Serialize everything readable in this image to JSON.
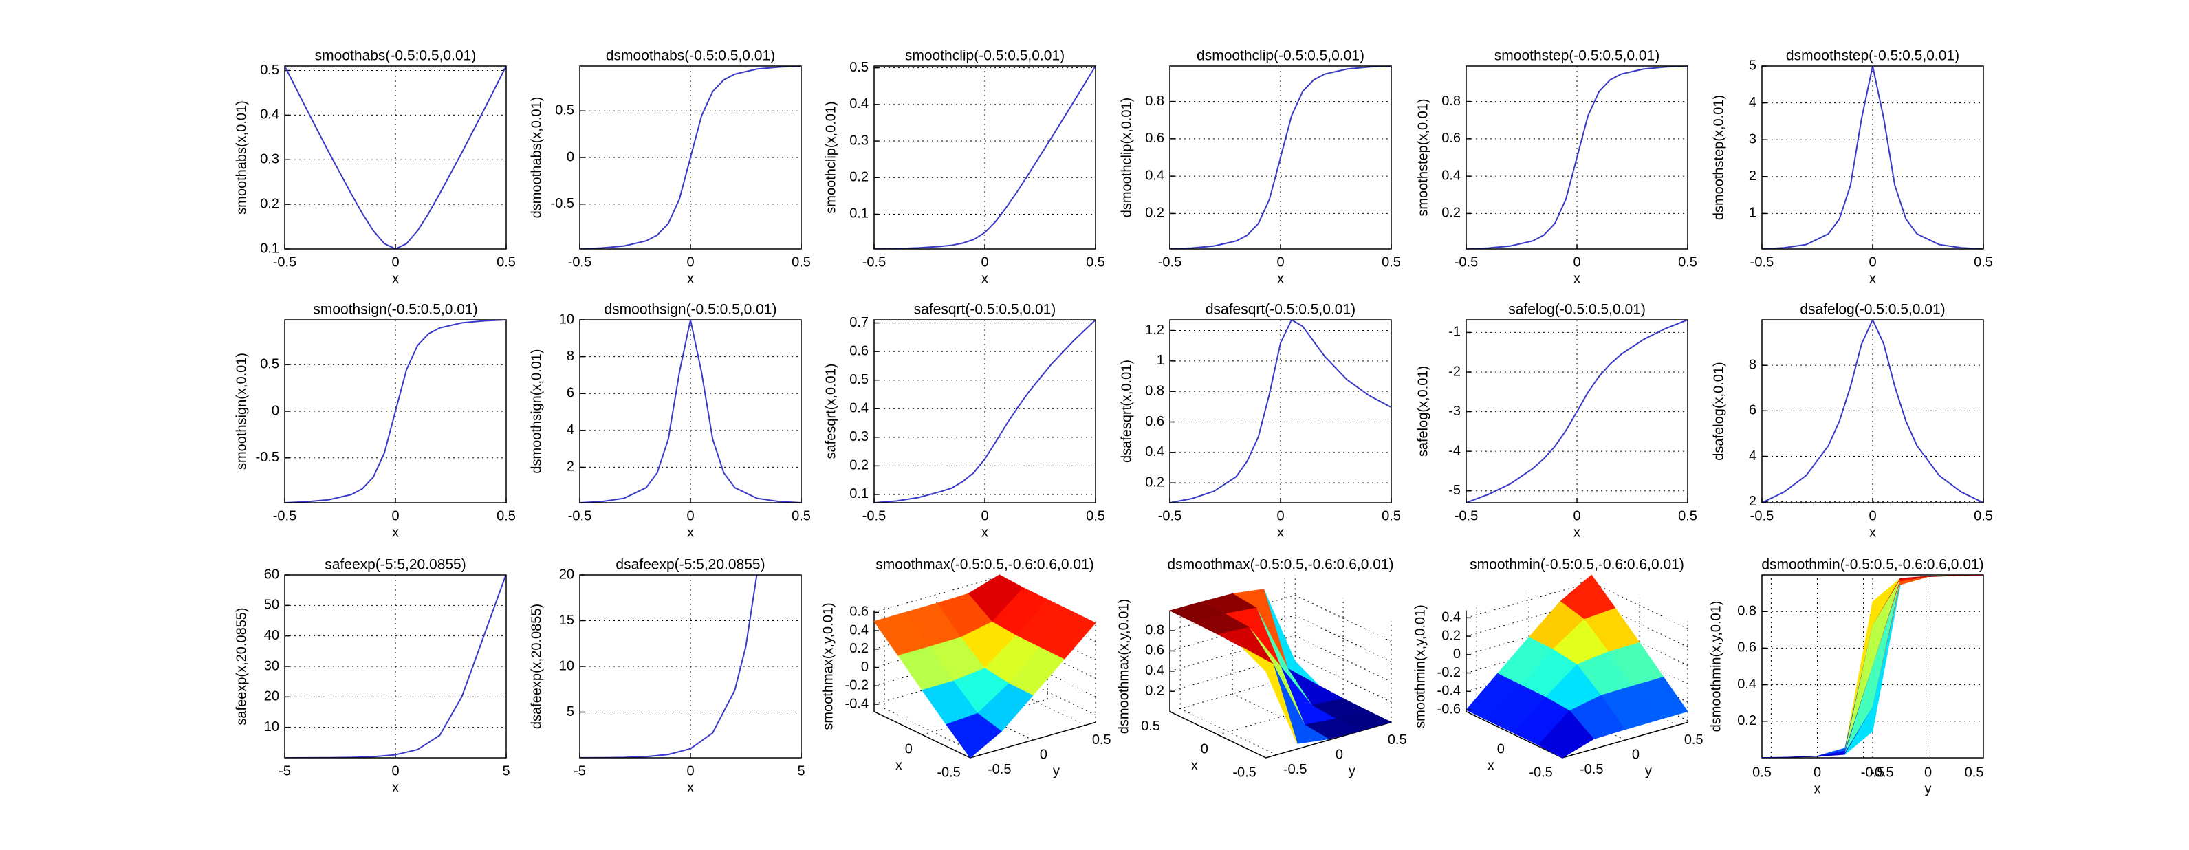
{
  "chart_data": [
    {
      "type": "line",
      "title": "smoothabs(-0.5:0.5,0.01)",
      "xlabel": "x",
      "ylabel": "smoothabs(x,0.01)",
      "color": "#3a3ac8",
      "grid": true,
      "x": [
        -0.5,
        -0.4,
        -0.3,
        -0.2,
        -0.15,
        -0.1,
        -0.05,
        0,
        0.05,
        0.1,
        0.15,
        0.2,
        0.3,
        0.4,
        0.5
      ],
      "values": [
        0.51,
        0.412,
        0.316,
        0.224,
        0.18,
        0.141,
        0.112,
        0.1,
        0.112,
        0.141,
        0.18,
        0.224,
        0.316,
        0.412,
        0.51
      ],
      "xlim": [
        -0.5,
        0.5
      ],
      "ylim": [
        0.1,
        0.51
      ],
      "xticks": [
        -0.5,
        0,
        0.5
      ],
      "yticks": [
        0.1,
        0.2,
        0.3,
        0.4,
        0.5
      ]
    },
    {
      "type": "line",
      "title": "dsmoothabs(-0.5:0.5,0.01)",
      "xlabel": "x",
      "ylabel": "dsmoothabs(x,0.01)",
      "color": "#3a3ac8",
      "grid": true,
      "x": [
        -0.5,
        -0.4,
        -0.3,
        -0.2,
        -0.15,
        -0.1,
        -0.05,
        0,
        0.05,
        0.1,
        0.15,
        0.2,
        0.3,
        0.4,
        0.5
      ],
      "values": [
        -0.981,
        -0.97,
        -0.949,
        -0.894,
        -0.832,
        -0.707,
        -0.447,
        0,
        0.447,
        0.707,
        0.832,
        0.894,
        0.949,
        0.97,
        0.981
      ],
      "xlim": [
        -0.5,
        0.5
      ],
      "ylim": [
        -0.981,
        0.981
      ],
      "xticks": [
        -0.5,
        0,
        0.5
      ],
      "yticks": [
        -0.5,
        0,
        0.5
      ]
    },
    {
      "type": "line",
      "title": "smoothclip(-0.5:0.5,0.01)",
      "xlabel": "x",
      "ylabel": "smoothclip(x,0.01)",
      "color": "#3a3ac8",
      "grid": true,
      "x": [
        -0.5,
        -0.4,
        -0.3,
        -0.2,
        -0.15,
        -0.1,
        -0.05,
        0,
        0.05,
        0.1,
        0.15,
        0.2,
        0.3,
        0.4,
        0.5
      ],
      "values": [
        0.005,
        0.006,
        0.008,
        0.012,
        0.015,
        0.021,
        0.031,
        0.05,
        0.081,
        0.121,
        0.165,
        0.212,
        0.308,
        0.406,
        0.505
      ],
      "xlim": [
        -0.5,
        0.5
      ],
      "ylim": [
        0.005,
        0.505
      ],
      "xticks": [
        -0.5,
        0,
        0.5
      ],
      "yticks": [
        0.1,
        0.2,
        0.3,
        0.4,
        0.5
      ]
    },
    {
      "type": "line",
      "title": "dsmoothclip(-0.5:0.5,0.01)",
      "xlabel": "x",
      "ylabel": "dsmoothclip(x,0.01)",
      "color": "#3a3ac8",
      "grid": true,
      "x": [
        -0.5,
        -0.4,
        -0.3,
        -0.2,
        -0.15,
        -0.1,
        -0.05,
        0,
        0.05,
        0.1,
        0.15,
        0.2,
        0.3,
        0.4,
        0.5
      ],
      "values": [
        0.01,
        0.015,
        0.026,
        0.053,
        0.084,
        0.146,
        0.276,
        0.5,
        0.724,
        0.854,
        0.916,
        0.947,
        0.974,
        0.985,
        0.99
      ],
      "xlim": [
        -0.5,
        0.5
      ],
      "ylim": [
        0.01,
        0.99
      ],
      "xticks": [
        -0.5,
        0,
        0.5
      ],
      "yticks": [
        0.2,
        0.4,
        0.6,
        0.8
      ]
    },
    {
      "type": "line",
      "title": "smoothstep(-0.5:0.5,0.01)",
      "xlabel": "x",
      "ylabel": "smoothstep(x,0.01)",
      "color": "#3a3ac8",
      "grid": true,
      "x": [
        -0.5,
        -0.4,
        -0.3,
        -0.2,
        -0.15,
        -0.1,
        -0.05,
        0,
        0.05,
        0.1,
        0.15,
        0.2,
        0.3,
        0.4,
        0.5
      ],
      "values": [
        0.01,
        0.015,
        0.026,
        0.053,
        0.084,
        0.146,
        0.276,
        0.5,
        0.724,
        0.854,
        0.916,
        0.947,
        0.974,
        0.985,
        0.99
      ],
      "xlim": [
        -0.5,
        0.5
      ],
      "ylim": [
        0.01,
        0.99
      ],
      "xticks": [
        -0.5,
        0,
        0.5
      ],
      "yticks": [
        0.2,
        0.4,
        0.6,
        0.8
      ]
    },
    {
      "type": "line",
      "title": "dsmoothstep(-0.5:0.5,0.01)",
      "xlabel": "x",
      "ylabel": "dsmoothstep(x,0.01)",
      "color": "#3a3ac8",
      "grid": true,
      "x": [
        -0.5,
        -0.4,
        -0.3,
        -0.2,
        -0.15,
        -0.1,
        -0.05,
        0,
        0.05,
        0.1,
        0.15,
        0.2,
        0.3,
        0.4,
        0.5
      ],
      "values": [
        0.038,
        0.071,
        0.158,
        0.447,
        0.853,
        1.768,
        3.578,
        5,
        3.578,
        1.768,
        0.853,
        0.447,
        0.158,
        0.071,
        0.038
      ],
      "xlim": [
        -0.5,
        0.5
      ],
      "ylim": [
        0.038,
        5
      ],
      "xticks": [
        -0.5,
        0,
        0.5
      ],
      "yticks": [
        1,
        2,
        3,
        4,
        5
      ]
    },
    {
      "type": "line",
      "title": "smoothsign(-0.5:0.5,0.01)",
      "xlabel": "x",
      "ylabel": "smoothsign(x,0.01)",
      "color": "#3a3ac8",
      "grid": true,
      "x": [
        -0.5,
        -0.4,
        -0.3,
        -0.2,
        -0.15,
        -0.1,
        -0.05,
        0,
        0.05,
        0.1,
        0.15,
        0.2,
        0.3,
        0.4,
        0.5
      ],
      "values": [
        -0.981,
        -0.97,
        -0.949,
        -0.894,
        -0.832,
        -0.707,
        -0.447,
        0,
        0.447,
        0.707,
        0.832,
        0.894,
        0.949,
        0.97,
        0.981
      ],
      "xlim": [
        -0.5,
        0.5
      ],
      "ylim": [
        -0.981,
        0.981
      ],
      "xticks": [
        -0.5,
        0,
        0.5
      ],
      "yticks": [
        -0.5,
        0,
        0.5
      ]
    },
    {
      "type": "line",
      "title": "dsmoothsign(-0.5:0.5,0.01)",
      "xlabel": "x",
      "ylabel": "dsmoothsign(x,0.01)",
      "color": "#3a3ac8",
      "grid": true,
      "x": [
        -0.5,
        -0.4,
        -0.3,
        -0.2,
        -0.15,
        -0.1,
        -0.05,
        0,
        0.05,
        0.1,
        0.15,
        0.2,
        0.3,
        0.4,
        0.5
      ],
      "values": [
        0.076,
        0.142,
        0.316,
        0.894,
        1.706,
        3.536,
        7.155,
        10,
        7.155,
        3.536,
        1.706,
        0.894,
        0.316,
        0.142,
        0.076
      ],
      "xlim": [
        -0.5,
        0.5
      ],
      "ylim": [
        0.076,
        10
      ],
      "xticks": [
        -0.5,
        0,
        0.5
      ],
      "yticks": [
        2,
        4,
        6,
        8,
        10
      ]
    },
    {
      "type": "line",
      "title": "safesqrt(-0.5:0.5,0.01)",
      "xlabel": "x",
      "ylabel": "safesqrt(x,0.01)",
      "color": "#3a3ac8",
      "grid": true,
      "x": [
        -0.5,
        -0.4,
        -0.3,
        -0.2,
        -0.15,
        -0.1,
        -0.05,
        0,
        0.05,
        0.1,
        0.15,
        0.2,
        0.3,
        0.4,
        0.5
      ],
      "values": [
        0.071,
        0.077,
        0.089,
        0.11,
        0.122,
        0.145,
        0.176,
        0.224,
        0.285,
        0.348,
        0.406,
        0.46,
        0.555,
        0.637,
        0.711
      ],
      "xlim": [
        -0.5,
        0.5
      ],
      "ylim": [
        0.071,
        0.711
      ],
      "xticks": [
        -0.5,
        0,
        0.5
      ],
      "yticks": [
        0.1,
        0.2,
        0.3,
        0.4,
        0.5,
        0.6,
        0.7
      ]
    },
    {
      "type": "line",
      "title": "dsafesqrt(-0.5:0.5,0.01)",
      "xlabel": "x",
      "ylabel": "dsafesqrt(x,0.01)",
      "color": "#3a3ac8",
      "grid": true,
      "x": [
        -0.5,
        -0.4,
        -0.3,
        -0.2,
        -0.15,
        -0.1,
        -0.05,
        0,
        0.05,
        0.1,
        0.15,
        0.2,
        0.3,
        0.4,
        0.5
      ],
      "values": [
        0.07,
        0.097,
        0.146,
        0.241,
        0.344,
        0.503,
        0.784,
        1.118,
        1.27,
        1.227,
        1.128,
        1.029,
        0.877,
        0.773,
        0.696
      ],
      "xlim": [
        -0.5,
        0.5
      ],
      "ylim": [
        0.07,
        1.27
      ],
      "xticks": [
        -0.5,
        0,
        0.5
      ],
      "yticks": [
        0.2,
        0.4,
        0.6,
        0.8,
        1,
        1.2
      ]
    },
    {
      "type": "line",
      "title": "safelog(-0.5:0.5,0.01)",
      "xlabel": "x",
      "ylabel": "safelog(x,0.01)",
      "color": "#3a3ac8",
      "grid": true,
      "x": [
        -0.5,
        -0.4,
        -0.3,
        -0.2,
        -0.15,
        -0.1,
        -0.05,
        0,
        0.05,
        0.1,
        0.15,
        0.2,
        0.3,
        0.4,
        0.5
      ],
      "values": [
        -5.3,
        -5.09,
        -4.82,
        -4.44,
        -4.19,
        -3.88,
        -3.48,
        -3.0,
        -2.51,
        -2.11,
        -1.8,
        -1.55,
        -1.18,
        -0.9,
        -0.68
      ],
      "xlim": [
        -0.5,
        0.5
      ],
      "ylim": [
        -5.3,
        -0.68
      ],
      "xticks": [
        -0.5,
        0,
        0.5
      ],
      "yticks": [
        -5,
        -4,
        -3,
        -2,
        -1
      ]
    },
    {
      "type": "line",
      "title": "dsafelog(-0.5:0.5,0.01)",
      "xlabel": "x",
      "ylabel": "dsafelog(x,0.01)",
      "color": "#3a3ac8",
      "grid": true,
      "x": [
        -0.5,
        -0.4,
        -0.3,
        -0.2,
        -0.15,
        -0.1,
        -0.05,
        0,
        0.05,
        0.1,
        0.15,
        0.2,
        0.3,
        0.4,
        0.5
      ],
      "values": [
        1.96,
        2.43,
        3.16,
        4.47,
        5.55,
        7.07,
        8.94,
        10,
        8.94,
        7.07,
        5.55,
        4.47,
        3.16,
        2.43,
        1.96
      ],
      "xlim": [
        -0.5,
        0.5
      ],
      "ylim": [
        1.96,
        10
      ],
      "xticks": [
        -0.5,
        0,
        0.5
      ],
      "yticks": [
        2,
        4,
        6,
        8
      ]
    },
    {
      "type": "line",
      "title": "safeexp(-5:5,20.0855)",
      "xlabel": "x",
      "ylabel": "safeexp(x,20.0855)",
      "color": "#3a3ac8",
      "grid": true,
      "x": [
        -5,
        -4,
        -3,
        -2,
        -1,
        0,
        1,
        2,
        3,
        4,
        5
      ],
      "values": [
        0.007,
        0.018,
        0.05,
        0.135,
        0.368,
        1,
        2.718,
        7.389,
        20.086,
        40.17,
        60.26
      ],
      "xlim": [
        -5,
        5
      ],
      "ylim": [
        0,
        60
      ],
      "xticks": [
        -5,
        0,
        5
      ],
      "yticks": [
        10,
        20,
        30,
        40,
        50,
        60
      ]
    },
    {
      "type": "line",
      "title": "dsafeexp(-5:5,20.0855)",
      "xlabel": "x",
      "ylabel": "dsafeexp(x,20.0855)",
      "color": "#3a3ac8",
      "grid": true,
      "x": [
        -5,
        -4,
        -3,
        -2,
        -1,
        0,
        1,
        2,
        2.5,
        3
      ],
      "values": [
        0.007,
        0.018,
        0.05,
        0.135,
        0.368,
        1,
        2.718,
        7.389,
        12.18,
        20.086
      ],
      "xlim": [
        -5,
        5
      ],
      "ylim": [
        0,
        20
      ],
      "xticks": [
        -5,
        0,
        5
      ],
      "yticks": [
        5,
        10,
        15,
        20
      ]
    },
    {
      "type": "surface",
      "title": "smoothmax(-0.5:0.5,-0.6:0.6,0.01)",
      "xlabel": "x",
      "ylabel": "y",
      "zlabel": "smoothmax(x,y,0.01)",
      "colormap": "jet",
      "grid": true,
      "view": [
        37.5,
        30
      ],
      "box": false,
      "x": [
        -0.5,
        -0.25,
        0,
        0.25,
        0.5
      ],
      "y": [
        -0.6,
        -0.3,
        0,
        0.3,
        0.6
      ],
      "z": [
        [
          -0.479,
          -0.243,
          0.004,
          0.254,
          0.502
        ],
        [
          -0.288,
          -0.219,
          0.008,
          0.255,
          0.503
        ],
        [
          0.005,
          0.01,
          0.05,
          0.26,
          0.505
        ],
        [
          0.303,
          0.305,
          0.308,
          0.331,
          0.512
        ],
        [
          0.602,
          0.604,
          0.604,
          0.607,
          0.621
        ]
      ],
      "xlim": [
        -0.5,
        0.5
      ],
      "ylim": [
        -0.6,
        0.6
      ],
      "zlim": [
        -0.48,
        0.62
      ],
      "xticks": [
        -0.5,
        0
      ],
      "yticks": [
        -0.5,
        0,
        0.5
      ],
      "zticks": [
        -0.4,
        -0.2,
        0,
        0.2,
        0.4,
        0.6
      ]
    },
    {
      "type": "surface",
      "title": "dsmoothmax(-0.5:0.5,-0.6:0.6,0.01)",
      "xlabel": "x",
      "ylabel": "y",
      "zlabel": "dsmoothmax(x,y,0.01)",
      "colormap": "jet",
      "grid": true,
      "view": [
        37.5,
        30
      ],
      "box": false,
      "x": [
        -0.5,
        -0.25,
        0,
        0.25,
        0.5
      ],
      "y": [
        -0.6,
        -0.3,
        0,
        0.3,
        0.6
      ],
      "z": [
        [
          0.854,
          0.981,
          0.993,
          0.997,
          0.998
        ],
        [
          0.053,
          0.724,
          0.974,
          0.992,
          0.996
        ],
        [
          0.01,
          0.036,
          0.5,
          0.964,
          0.99
        ],
        [
          0.004,
          0.008,
          0.026,
          0.276,
          0.947
        ],
        [
          0.002,
          0.003,
          0.007,
          0.019,
          0.146
        ]
      ],
      "xlim": [
        -0.5,
        0.5
      ],
      "ylim": [
        -0.6,
        0.6
      ],
      "zlim": [
        0,
        1
      ],
      "xticks": [
        -0.5,
        0,
        0.5
      ],
      "yticks": [
        -0.5,
        0,
        0.5
      ],
      "zticks": [
        0.2,
        0.4,
        0.6,
        0.8
      ]
    },
    {
      "type": "surface",
      "title": "smoothmin(-0.5:0.5,-0.6:0.6,0.01)",
      "xlabel": "x",
      "ylabel": "y",
      "zlabel": "smoothmin(x,y,0.01)",
      "colormap": "jet",
      "grid": true,
      "view": [
        37.5,
        30
      ],
      "box": false,
      "x": [
        -0.5,
        -0.25,
        0,
        0.25,
        0.5
      ],
      "y": [
        -0.6,
        -0.3,
        0,
        0.3,
        0.6
      ],
      "z": [
        [
          -0.621,
          -0.607,
          -0.604,
          -0.604,
          -0.602
        ],
        [
          -0.512,
          -0.331,
          -0.308,
          -0.305,
          -0.303
        ],
        [
          -0.505,
          -0.26,
          -0.05,
          -0.01,
          -0.005
        ],
        [
          -0.503,
          -0.255,
          -0.008,
          0.219,
          0.288
        ],
        [
          -0.502,
          -0.254,
          -0.004,
          0.243,
          0.479
        ]
      ],
      "xlim": [
        -0.5,
        0.5
      ],
      "ylim": [
        -0.6,
        0.6
      ],
      "zlim": [
        -0.62,
        0.48
      ],
      "xticks": [
        -0.5,
        0
      ],
      "yticks": [
        -0.5,
        0,
        0.5
      ],
      "zticks": [
        -0.6,
        -0.4,
        -0.2,
        0,
        0.2,
        0.4
      ]
    },
    {
      "type": "surface",
      "title": "dsmoothmin(-0.5:0.5,-0.6:0.6,0.01)",
      "xlabel": "x",
      "ylabel": "y",
      "zlabel": "dsmoothmin(x,y,0.01)",
      "colormap": "jet",
      "grid": true,
      "view": [
        45,
        0
      ],
      "box": true,
      "x": [
        -0.5,
        -0.25,
        0,
        0.25,
        0.5
      ],
      "y": [
        -0.6,
        -0.3,
        0,
        0.3,
        0.6
      ],
      "z": [
        [
          0.146,
          0.019,
          0.007,
          0.003,
          0.002
        ],
        [
          0.947,
          0.276,
          0.026,
          0.008,
          0.004
        ],
        [
          0.99,
          0.964,
          0.5,
          0.036,
          0.01
        ],
        [
          0.996,
          0.992,
          0.974,
          0.724,
          0.053
        ],
        [
          0.998,
          0.997,
          0.993,
          0.981,
          0.854
        ]
      ],
      "xlim": [
        -0.5,
        0.5
      ],
      "ylim": [
        -0.6,
        0.6
      ],
      "zlim": [
        0,
        1
      ],
      "xticks": [
        -0.5,
        0,
        0.5
      ],
      "yticks": [
        -0.5,
        0,
        0.5
      ],
      "zticks": [
        0.2,
        0.4,
        0.6,
        0.8
      ]
    }
  ]
}
